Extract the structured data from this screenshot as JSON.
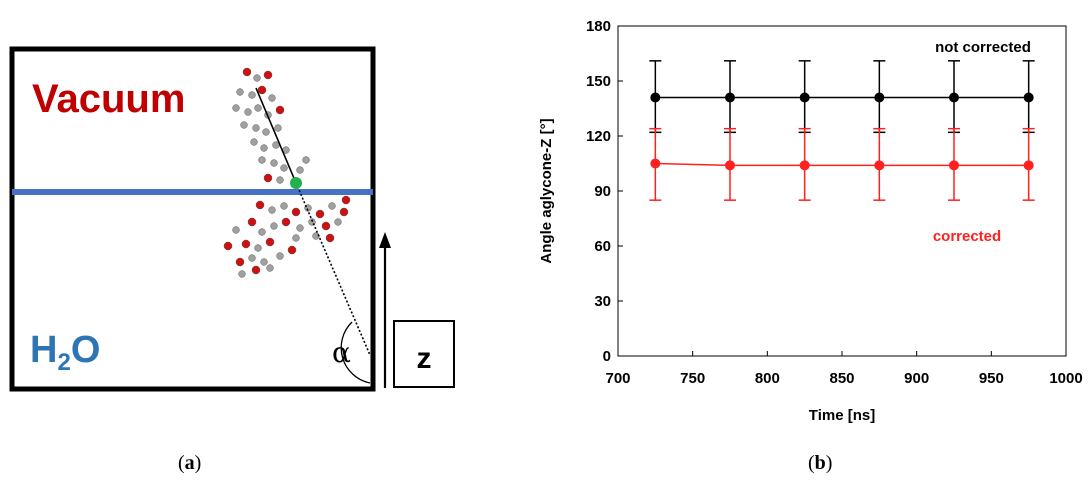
{
  "panel_a": {
    "caption_open": "(",
    "caption_letter": "a",
    "caption_close": ")",
    "vacuum_label": "Vacuum",
    "water_label_main": "H",
    "water_label_sub": "2",
    "water_label_end": "O",
    "angle_label": "α",
    "axis_label": "z",
    "colors": {
      "vacuum": "#c00000",
      "water": "#2e75b6",
      "interface": "#4472c4",
      "marker": "#22b14c",
      "oxygen": "#d01010",
      "carbon": "#a0a0a0"
    }
  },
  "panel_b": {
    "caption_open": "(",
    "caption_letter": "b",
    "caption_close": ")"
  },
  "chart_data": {
    "type": "line",
    "title": "",
    "xlabel": "Time [ns]",
    "ylabel": "Angle aglycone-Z [°]",
    "xlim": [
      700,
      1000
    ],
    "ylim": [
      0,
      180
    ],
    "xticks": [
      700,
      750,
      800,
      850,
      900,
      950,
      1000
    ],
    "yticks": [
      0,
      30,
      60,
      90,
      120,
      150,
      180
    ],
    "grid": false,
    "x": [
      725,
      775,
      825,
      875,
      925,
      975
    ],
    "series": [
      {
        "name": "not corrected",
        "color": "#000000",
        "values": [
          141,
          141,
          141,
          141,
          141,
          141
        ],
        "err_low": [
          122,
          122,
          122,
          122,
          122,
          122
        ],
        "err_high": [
          161,
          161,
          161,
          161,
          161,
          161
        ]
      },
      {
        "name": "corrected",
        "color": "#ff2020",
        "values": [
          105,
          104,
          104,
          104,
          104,
          104
        ],
        "err_low": [
          85,
          85,
          85,
          85,
          85,
          85
        ],
        "err_high": [
          124,
          124,
          124,
          124,
          124,
          124
        ]
      }
    ]
  }
}
